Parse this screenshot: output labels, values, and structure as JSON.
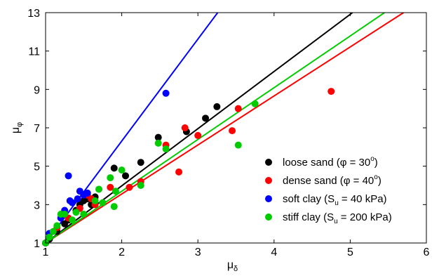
{
  "chart_data": {
    "type": "scatter",
    "title": "",
    "xlabel": {
      "main": "μ",
      "sub": "δ"
    },
    "ylabel": {
      "main": "μ",
      "sub": "φ"
    },
    "xlim": [
      1,
      6
    ],
    "ylim": [
      1,
      13
    ],
    "xticks": [
      "1",
      "2",
      "3",
      "4",
      "5",
      "6"
    ],
    "yticks": [
      "1",
      "3",
      "5",
      "7",
      "9",
      "11",
      "13"
    ],
    "grid": false,
    "legend_position": "bottom-right",
    "series": [
      {
        "color": "#000000",
        "legend": {
          "pre": "loose sand (",
          "sym": "φ",
          "mid": " = 30",
          "sup": "o",
          "post": ")"
        },
        "line": {
          "from": [
            1,
            1
          ],
          "to": [
            5.03,
            13
          ]
        },
        "points": [
          [
            1.0,
            1.0
          ],
          [
            1.05,
            1.2
          ],
          [
            1.15,
            1.6
          ],
          [
            1.25,
            2.0
          ],
          [
            1.3,
            2.2
          ],
          [
            1.4,
            2.7
          ],
          [
            1.45,
            3.0
          ],
          [
            1.5,
            3.2
          ],
          [
            1.55,
            3.3
          ],
          [
            1.6,
            3.0
          ],
          [
            1.65,
            3.4
          ],
          [
            1.9,
            4.9
          ],
          [
            2.05,
            4.5
          ],
          [
            2.25,
            5.2
          ],
          [
            2.48,
            6.5
          ],
          [
            2.85,
            6.8
          ],
          [
            3.1,
            7.5
          ],
          [
            3.25,
            8.1
          ]
        ]
      },
      {
        "color": "#ff0000",
        "legend": {
          "pre": "dense sand (",
          "sym": "φ",
          "mid": " = 40",
          "sup": "o",
          "post": ")"
        },
        "line": {
          "from": [
            1,
            1
          ],
          "to": [
            5.7,
            13
          ]
        },
        "points": [
          [
            1.0,
            1.0
          ],
          [
            1.15,
            1.8
          ],
          [
            1.3,
            2.3
          ],
          [
            1.45,
            2.8
          ],
          [
            1.55,
            3.5
          ],
          [
            1.6,
            3.3
          ],
          [
            1.65,
            3.0
          ],
          [
            1.85,
            3.9
          ],
          [
            2.1,
            3.9
          ],
          [
            2.25,
            4.2
          ],
          [
            2.58,
            6.1
          ],
          [
            2.75,
            4.7
          ],
          [
            2.83,
            7.0
          ],
          [
            3.0,
            6.6
          ],
          [
            3.45,
            6.85
          ],
          [
            3.53,
            8.0
          ],
          [
            4.75,
            8.9
          ]
        ]
      },
      {
        "color": "#0000ff",
        "legend": {
          "pre": "soft clay (S",
          "sub": "u",
          "post": " = 40 kPa)"
        },
        "line": {
          "from": [
            1,
            1
          ],
          "to": [
            3.9,
            16.4
          ]
        },
        "points": [
          [
            1.0,
            1.0
          ],
          [
            1.05,
            1.5
          ],
          [
            1.2,
            2.3
          ],
          [
            1.25,
            2.7
          ],
          [
            1.3,
            4.5
          ],
          [
            1.32,
            3.2
          ],
          [
            1.35,
            3.1
          ],
          [
            1.42,
            3.3
          ],
          [
            1.45,
            3.7
          ],
          [
            1.5,
            3.5
          ],
          [
            1.55,
            3.6
          ],
          [
            2.58,
            8.8
          ]
        ]
      },
      {
        "color": "#00cc00",
        "legend": {
          "pre": "stiff clay (S",
          "sub": "u",
          "post": " = 200 kPa)"
        },
        "line": {
          "from": [
            1,
            1
          ],
          "to": [
            5.45,
            13
          ]
        },
        "points": [
          [
            1.0,
            1.0
          ],
          [
            1.05,
            1.3
          ],
          [
            1.1,
            1.6
          ],
          [
            1.15,
            1.9
          ],
          [
            1.2,
            2.5
          ],
          [
            1.25,
            2.5
          ],
          [
            1.35,
            2.2
          ],
          [
            1.4,
            2.6
          ],
          [
            1.5,
            2.5
          ],
          [
            1.65,
            3.2
          ],
          [
            1.7,
            3.8
          ],
          [
            1.75,
            3.1
          ],
          [
            1.85,
            4.4
          ],
          [
            1.9,
            2.9
          ],
          [
            1.92,
            3.7
          ],
          [
            2.0,
            4.8
          ],
          [
            2.25,
            4.0
          ],
          [
            2.48,
            6.2
          ],
          [
            2.58,
            5.9
          ],
          [
            3.53,
            6.1
          ],
          [
            3.75,
            8.25
          ]
        ]
      }
    ]
  }
}
